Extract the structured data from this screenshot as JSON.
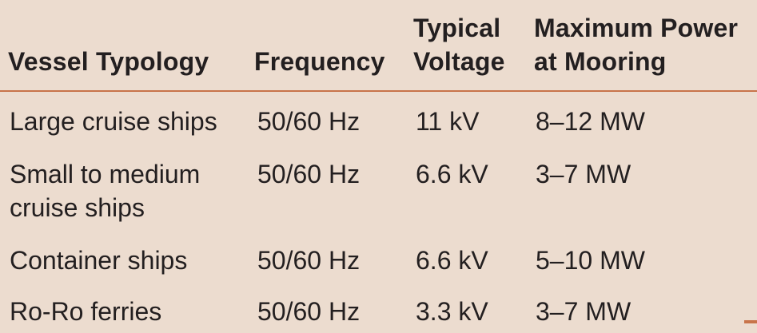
{
  "table": {
    "headers": [
      {
        "line1": "",
        "line2": "Vessel Typology"
      },
      {
        "line1": "",
        "line2": "Frequency"
      },
      {
        "line1": "Typical",
        "line2": "Voltage"
      },
      {
        "line1": "Maximum Power",
        "line2": "at Mooring"
      }
    ],
    "rows": [
      {
        "vessel": [
          "Large cruise ships"
        ],
        "frequency": "50/60 Hz",
        "voltage": "11 kV",
        "power": "8–12 MW"
      },
      {
        "vessel": [
          "Small to medium",
          "cruise ships"
        ],
        "frequency": "50/60 Hz",
        "voltage": "6.6 kV",
        "power": "3–7 MW"
      },
      {
        "vessel": [
          "Container ships"
        ],
        "frequency": "50/60 Hz",
        "voltage": "6.6 kV",
        "power": "5–10 MW"
      },
      {
        "vessel": [
          "Ro-Ro ferries"
        ],
        "frequency": "50/60 Hz",
        "voltage": "3.3 kV",
        "power": "3–7 MW"
      }
    ]
  },
  "colors": {
    "background": "#ecdccf",
    "rule": "#c8744a",
    "text": "#231f20"
  }
}
